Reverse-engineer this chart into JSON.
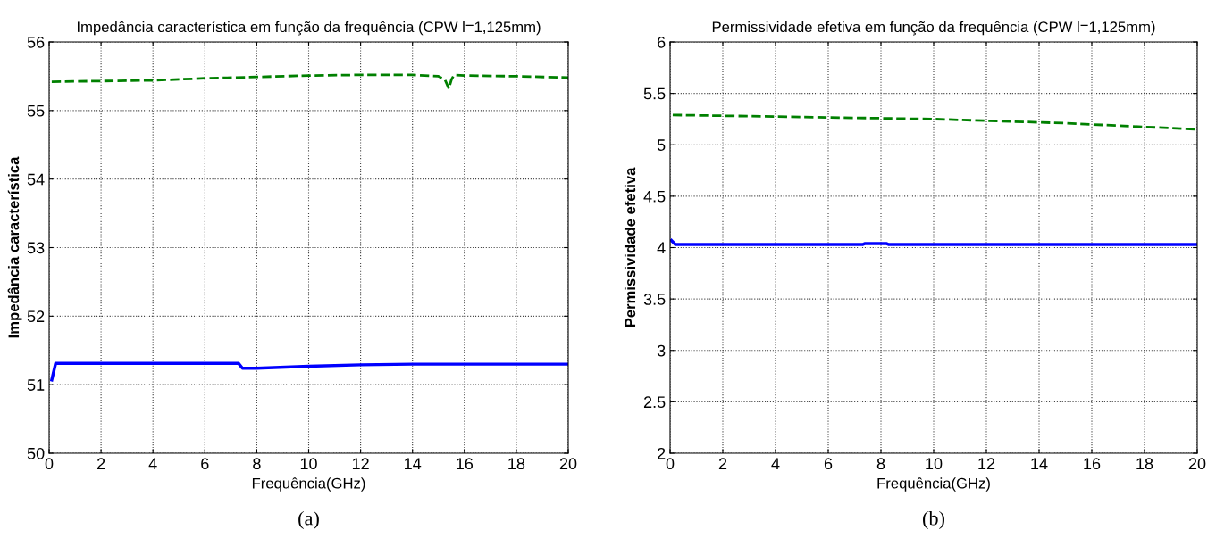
{
  "chart_data": [
    {
      "type": "line",
      "title": "Impedância característica em função da frequência (CPW l=1,125mm)",
      "xlabel": "Frequência(GHz)",
      "ylabel": "Impedância característica",
      "annotations": [
        "(a)"
      ],
      "xlim": [
        0,
        20
      ],
      "xticks": [
        0,
        2,
        4,
        6,
        8,
        10,
        12,
        14,
        16,
        18,
        20
      ],
      "ylim": [
        50,
        56
      ],
      "yticks": [
        50,
        51,
        52,
        53,
        54,
        55,
        56
      ],
      "grid": true,
      "series": [
        {
          "color": "#0000ff",
          "line_style": "solid",
          "x": [
            0.1,
            0.25,
            2,
            4,
            6,
            7.3,
            7.45,
            8,
            10,
            12,
            14,
            16,
            18,
            20
          ],
          "values": [
            51.07,
            51.31,
            51.31,
            51.31,
            51.31,
            51.31,
            51.24,
            51.24,
            51.27,
            51.29,
            51.3,
            51.3,
            51.3,
            51.3
          ]
        },
        {
          "color": "#008000",
          "line_style": "dashed",
          "x": [
            0.1,
            2,
            4,
            6,
            8,
            10,
            12,
            14,
            15,
            15.25,
            15.4,
            15.5,
            15.6,
            16,
            18,
            20
          ],
          "values": [
            55.42,
            55.43,
            55.44,
            55.47,
            55.49,
            55.51,
            55.52,
            55.52,
            55.5,
            55.45,
            55.32,
            55.45,
            55.52,
            55.51,
            55.5,
            55.48
          ]
        }
      ]
    },
    {
      "type": "line",
      "title": "Permissividade efetiva em função da frequência (CPW l=1,125mm)",
      "xlabel": "Frequência(GHz)",
      "ylabel": "Permissividade efetiva",
      "annotations": [
        "(b)"
      ],
      "xlim": [
        0,
        20
      ],
      "xticks": [
        0,
        2,
        4,
        6,
        8,
        10,
        12,
        14,
        16,
        18,
        20
      ],
      "ylim": [
        2,
        6
      ],
      "yticks": [
        2,
        2.5,
        3,
        3.5,
        4,
        4.5,
        5,
        5.5,
        6
      ],
      "grid": true,
      "series": [
        {
          "color": "#0000ff",
          "line_style": "solid",
          "x": [
            0.05,
            0.2,
            4,
            7.3,
            7.4,
            8.2,
            8.3,
            11.5,
            16,
            20
          ],
          "values": [
            4.07,
            4.03,
            4.03,
            4.03,
            4.04,
            4.04,
            4.03,
            4.03,
            4.03,
            4.03
          ]
        },
        {
          "color": "#008000",
          "line_style": "dashed",
          "x": [
            0.1,
            5,
            10,
            15,
            20
          ],
          "values": [
            5.29,
            5.27,
            5.25,
            5.21,
            5.15
          ]
        }
      ]
    }
  ]
}
